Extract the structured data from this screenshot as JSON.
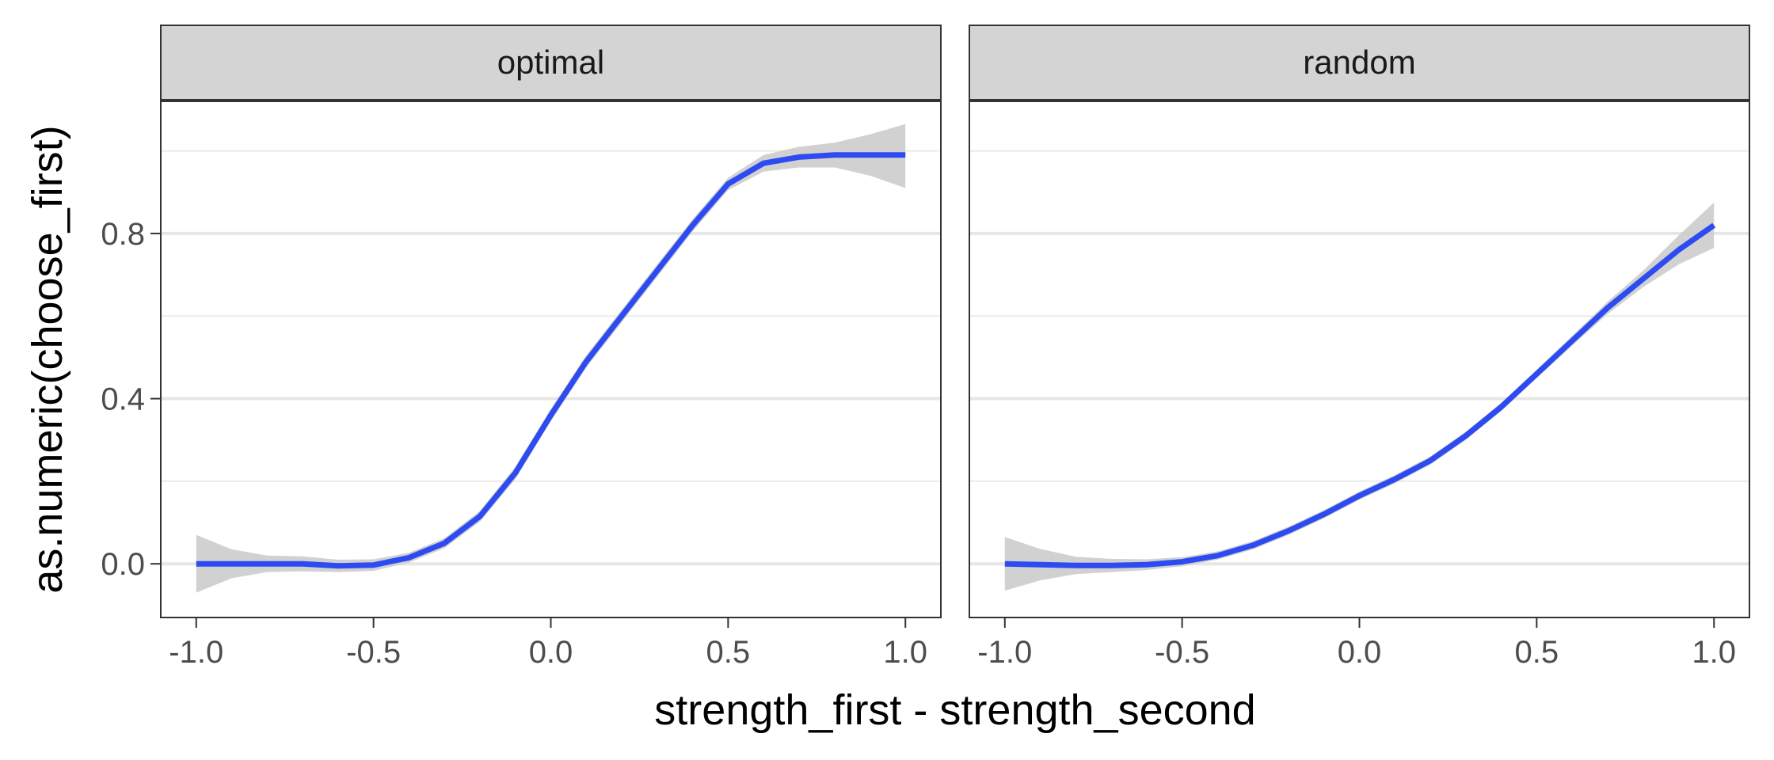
{
  "chart_data": {
    "type": "line",
    "facet_variable_levels": [
      "optimal",
      "random"
    ],
    "xlabel": "strength_first - strength_second",
    "ylabel": "as.numeric(choose_first)",
    "xlim": [
      -1.1,
      1.1
    ],
    "ylim": [
      -0.13,
      1.12
    ],
    "x_ticks": [
      -1.0,
      -0.5,
      0.0,
      0.5,
      1.0
    ],
    "x_tick_labels": [
      "-1.0",
      "-0.5",
      "0.0",
      "0.5",
      "1.0"
    ],
    "y_ticks": [
      0.0,
      0.4,
      0.8
    ],
    "y_tick_labels": [
      "0.0",
      "0.4",
      "0.8"
    ],
    "y_minor_ticks": [
      0.2,
      0.6,
      1.0
    ],
    "grid": true,
    "legend": "none",
    "line_color": "#2d4bf0",
    "ribbon_color": "#cccccc",
    "panels": [
      {
        "label": "optimal",
        "x": [
          -1.0,
          -0.9,
          -0.8,
          -0.7,
          -0.6,
          -0.5,
          -0.4,
          -0.3,
          -0.2,
          -0.1,
          0.0,
          0.1,
          0.2,
          0.3,
          0.4,
          0.5,
          0.6,
          0.7,
          0.8,
          0.9,
          1.0
        ],
        "y": [
          0.0,
          0.0,
          0.0,
          0.0,
          -0.005,
          -0.003,
          0.015,
          0.05,
          0.115,
          0.22,
          0.36,
          0.49,
          0.6,
          0.71,
          0.82,
          0.92,
          0.97,
          0.985,
          0.99,
          0.99,
          0.99
        ],
        "lower": [
          -0.07,
          -0.035,
          -0.02,
          -0.018,
          -0.02,
          -0.017,
          0.003,
          0.038,
          0.102,
          0.205,
          0.345,
          0.475,
          0.585,
          0.695,
          0.805,
          0.905,
          0.95,
          0.96,
          0.96,
          0.94,
          0.91
        ],
        "upper": [
          0.07,
          0.035,
          0.02,
          0.018,
          0.01,
          0.011,
          0.027,
          0.062,
          0.128,
          0.235,
          0.375,
          0.505,
          0.615,
          0.725,
          0.835,
          0.935,
          0.99,
          1.01,
          1.02,
          1.04,
          1.065
        ]
      },
      {
        "label": "random",
        "x": [
          -1.0,
          -0.9,
          -0.8,
          -0.7,
          -0.6,
          -0.5,
          -0.4,
          -0.3,
          -0.2,
          -0.1,
          0.0,
          0.1,
          0.2,
          0.3,
          0.4,
          0.5,
          0.6,
          0.7,
          0.8,
          0.9,
          1.0
        ],
        "y": [
          0.0,
          -0.002,
          -0.004,
          -0.004,
          -0.002,
          0.005,
          0.02,
          0.045,
          0.08,
          0.12,
          0.165,
          0.205,
          0.25,
          0.31,
          0.38,
          0.46,
          0.54,
          0.62,
          0.69,
          0.76,
          0.82
        ],
        "lower": [
          -0.065,
          -0.04,
          -0.025,
          -0.02,
          -0.015,
          -0.006,
          0.01,
          0.035,
          0.07,
          0.11,
          0.155,
          0.195,
          0.24,
          0.3,
          0.37,
          0.45,
          0.528,
          0.605,
          0.67,
          0.725,
          0.765
        ],
        "upper": [
          0.065,
          0.036,
          0.017,
          0.012,
          0.011,
          0.016,
          0.03,
          0.055,
          0.09,
          0.13,
          0.175,
          0.215,
          0.26,
          0.32,
          0.39,
          0.47,
          0.552,
          0.635,
          0.71,
          0.795,
          0.875
        ]
      }
    ]
  }
}
